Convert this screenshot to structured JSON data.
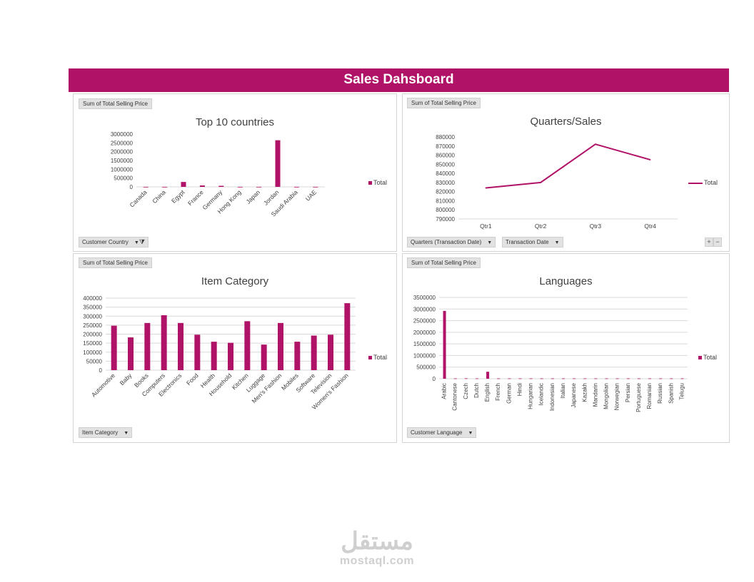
{
  "dashboard": {
    "title": "Sales Dahsboard"
  },
  "watermark": {
    "arabic": "مستقل",
    "site": "mostaql.com"
  },
  "colors": {
    "accent": "#b01267",
    "grid": "#d9d9d9",
    "axis_text": "#404040"
  },
  "panels": {
    "countries": {
      "field": "Sum of Total Selling Price",
      "filter": "Customer Country",
      "legend": "Total",
      "filter_icon": "funnel-icon"
    },
    "quarters": {
      "field": "Sum of Total Selling Price",
      "filter1": "Quarters (Transaction Date)",
      "filter2": "Transaction Date",
      "legend": "Total",
      "plus": "+",
      "minus": "−"
    },
    "category": {
      "field": "Sum of Total Selling Price",
      "filter": "Item Category",
      "legend": "Total"
    },
    "languages": {
      "field": "Sum of Total Selling Price",
      "filter": "Customer Language",
      "legend": "Total"
    }
  },
  "chart_data": [
    {
      "id": "countries",
      "type": "bar",
      "title": "Top 10 countries",
      "categories": [
        "Canada",
        "China",
        "Egypt",
        "France",
        "Germany",
        "Hong Kong",
        "Japan",
        "Jordan",
        "Saudi Arabia",
        "UAE"
      ],
      "series": [
        {
          "name": "Total",
          "values": [
            1500,
            2000,
            280000,
            80000,
            60000,
            3000,
            2500,
            2650000,
            4000,
            3500
          ]
        }
      ],
      "ylim": [
        0,
        3000000
      ],
      "yticks": [
        "3000000",
        "2500000",
        "2000000",
        "1500000",
        "1000000",
        "500000",
        "0"
      ],
      "grid": false,
      "legend": "right"
    },
    {
      "id": "quarters",
      "type": "line",
      "title": "Quarters/Sales",
      "categories": [
        "Qtr1",
        "Qtr2",
        "Qtr3",
        "Qtr4"
      ],
      "series": [
        {
          "name": "Total",
          "values": [
            824000,
            830000,
            872000,
            855000
          ]
        }
      ],
      "ylim": [
        790000,
        880000
      ],
      "yticks": [
        "880000",
        "870000",
        "860000",
        "850000",
        "840000",
        "830000",
        "820000",
        "810000",
        "800000",
        "790000"
      ],
      "grid": false,
      "legend": "right"
    },
    {
      "id": "category",
      "type": "bar",
      "title": "Item Category",
      "categories": [
        "Automotive",
        "Baby",
        "Books",
        "Computers",
        "Electronics",
        "Food",
        "Health",
        "Household",
        "Kitchen",
        "Luggage",
        "Men's Fashion",
        "Mobiles",
        "Software",
        "Television",
        "Women's Fashion"
      ],
      "series": [
        {
          "name": "Total",
          "values": [
            247000,
            182000,
            262000,
            305000,
            262000,
            197000,
            158000,
            152000,
            272000,
            142000,
            262000,
            158000,
            192000,
            197000,
            372000
          ]
        }
      ],
      "ylim": [
        0,
        400000
      ],
      "yticks": [
        "400000",
        "350000",
        "300000",
        "250000",
        "200000",
        "150000",
        "100000",
        "50000",
        "0"
      ],
      "grid": true,
      "legend": "right"
    },
    {
      "id": "languages",
      "type": "bar",
      "title": "Languages",
      "categories": [
        "Arabic",
        "Cantonese",
        "Czech",
        "Dutch",
        "English",
        "French",
        "German",
        "Hindi",
        "Hungarian",
        "Icelandic",
        "Indonesian",
        "Italian",
        "Japanese",
        "Kazakh",
        "Mandarin",
        "Mongolian",
        "Norwegian",
        "Persian",
        "Portuguese",
        "Romanian",
        "Russian",
        "Spanish",
        "Telugu"
      ],
      "series": [
        {
          "name": "Total",
          "values": [
            2920000,
            15000,
            18000,
            15000,
            300000,
            15000,
            15000,
            15000,
            15000,
            15000,
            15000,
            15000,
            15000,
            15000,
            15000,
            15000,
            15000,
            15000,
            15000,
            15000,
            15000,
            15000,
            15000
          ]
        }
      ],
      "ylim": [
        0,
        3500000
      ],
      "yticks": [
        "3500000",
        "3000000",
        "2500000",
        "2000000",
        "1500000",
        "1000000",
        "500000",
        "0"
      ],
      "grid": true,
      "legend": "right"
    }
  ]
}
